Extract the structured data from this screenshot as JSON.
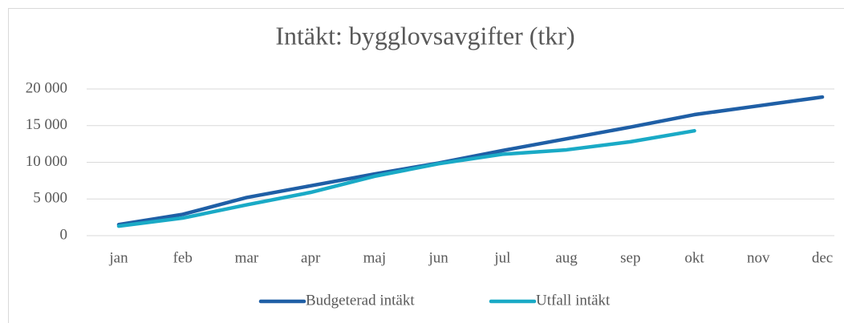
{
  "chart_data": {
    "type": "line",
    "title": "Intäkt: bygglovsavgifter (tkr)",
    "categories": [
      "jan",
      "feb",
      "mar",
      "apr",
      "maj",
      "jun",
      "jul",
      "aug",
      "sep",
      "okt",
      "nov",
      "dec"
    ],
    "series": [
      {
        "name": "Budgeterad intäkt",
        "color": "#1f5fa6",
        "values": [
          1500,
          2900,
          5200,
          6800,
          8400,
          9900,
          11600,
          13200,
          14800,
          16500,
          17700,
          18900
        ]
      },
      {
        "name": "Utfall intäkt",
        "color": "#1aaac6",
        "values": [
          1300,
          2400,
          4200,
          5900,
          8100,
          9800,
          11100,
          11700,
          12800,
          14300,
          null,
          null
        ]
      }
    ],
    "ylim": [
      0,
      20000
    ],
    "yticks": [
      0,
      {
        "value": 5000,
        "label": "5 000"
      },
      {
        "value": 10000,
        "label": "10 000"
      },
      {
        "value": 15000,
        "label": "15 000"
      },
      {
        "value": 20000,
        "label": "20 000"
      }
    ],
    "grid": true,
    "legend": "bottom"
  }
}
